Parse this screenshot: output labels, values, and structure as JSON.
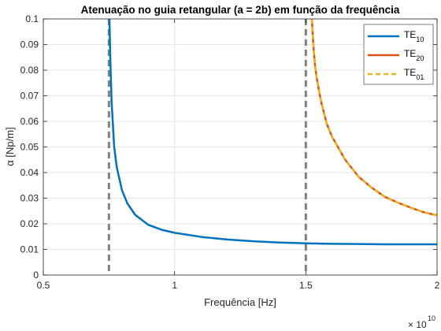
{
  "chart_data": {
    "type": "line",
    "title": "Atenuação no guia retangular (a = 2b) em função da frequência",
    "xlabel": "Frequência [Hz]",
    "ylabel": "α [Np/m]",
    "x_exponent_label": "× 10",
    "x_exponent_power": "10",
    "x_multiplier": 10000000000,
    "xlim": [
      0.5,
      2
    ],
    "ylim": [
      0,
      0.1
    ],
    "xticks": [
      0.5,
      1,
      1.5,
      2
    ],
    "xtick_labels": [
      "0.5",
      "1",
      "1.5",
      "2"
    ],
    "yticks": [
      0,
      0.01,
      0.02,
      0.03,
      0.04,
      0.05,
      0.06,
      0.07,
      0.08,
      0.09,
      0.1
    ],
    "ytick_labels": [
      "0",
      "0.01",
      "0.02",
      "0.03",
      "0.04",
      "0.05",
      "0.06",
      "0.07",
      "0.08",
      "0.09",
      "0.1"
    ],
    "grid": true,
    "legend_position": "top-right",
    "cutoff_lines": [
      0.75,
      1.5
    ],
    "series": [
      {
        "name": "TE",
        "subscript": "10",
        "color": "#0072BD",
        "style": "solid",
        "x": [
          0.752,
          0.755,
          0.76,
          0.77,
          0.78,
          0.8,
          0.82,
          0.85,
          0.9,
          0.95,
          1.0,
          1.1,
          1.2,
          1.3,
          1.4,
          1.5,
          1.6,
          1.7,
          1.8,
          1.9,
          2.0
        ],
        "y": [
          0.1,
          0.085,
          0.068,
          0.05,
          0.042,
          0.033,
          0.028,
          0.0235,
          0.0196,
          0.0177,
          0.0165,
          0.0149,
          0.0139,
          0.0132,
          0.0127,
          0.0124,
          0.0122,
          0.0121,
          0.012,
          0.012,
          0.012
        ]
      },
      {
        "name": "TE",
        "subscript": "20",
        "color": "#D95319",
        "style": "solid",
        "x": [
          1.523,
          1.527,
          1.53,
          1.535,
          1.54,
          1.55,
          1.56,
          1.58,
          1.6,
          1.65,
          1.7,
          1.75,
          1.8,
          1.85,
          1.9,
          1.95,
          2.0
        ],
        "y": [
          0.1,
          0.093,
          0.088,
          0.082,
          0.078,
          0.072,
          0.067,
          0.059,
          0.054,
          0.045,
          0.0385,
          0.0342,
          0.0306,
          0.0283,
          0.0263,
          0.0245,
          0.0233
        ]
      },
      {
        "name": "TE",
        "subscript": "01",
        "color": "#EDB120",
        "style": "dashed",
        "x": [
          1.523,
          1.527,
          1.53,
          1.535,
          1.54,
          1.55,
          1.56,
          1.58,
          1.6,
          1.65,
          1.7,
          1.75,
          1.8,
          1.85,
          1.9,
          1.95,
          2.0
        ],
        "y": [
          0.1,
          0.093,
          0.088,
          0.082,
          0.078,
          0.072,
          0.067,
          0.059,
          0.054,
          0.045,
          0.0385,
          0.0342,
          0.0306,
          0.0283,
          0.0263,
          0.0245,
          0.0233
        ]
      }
    ]
  }
}
